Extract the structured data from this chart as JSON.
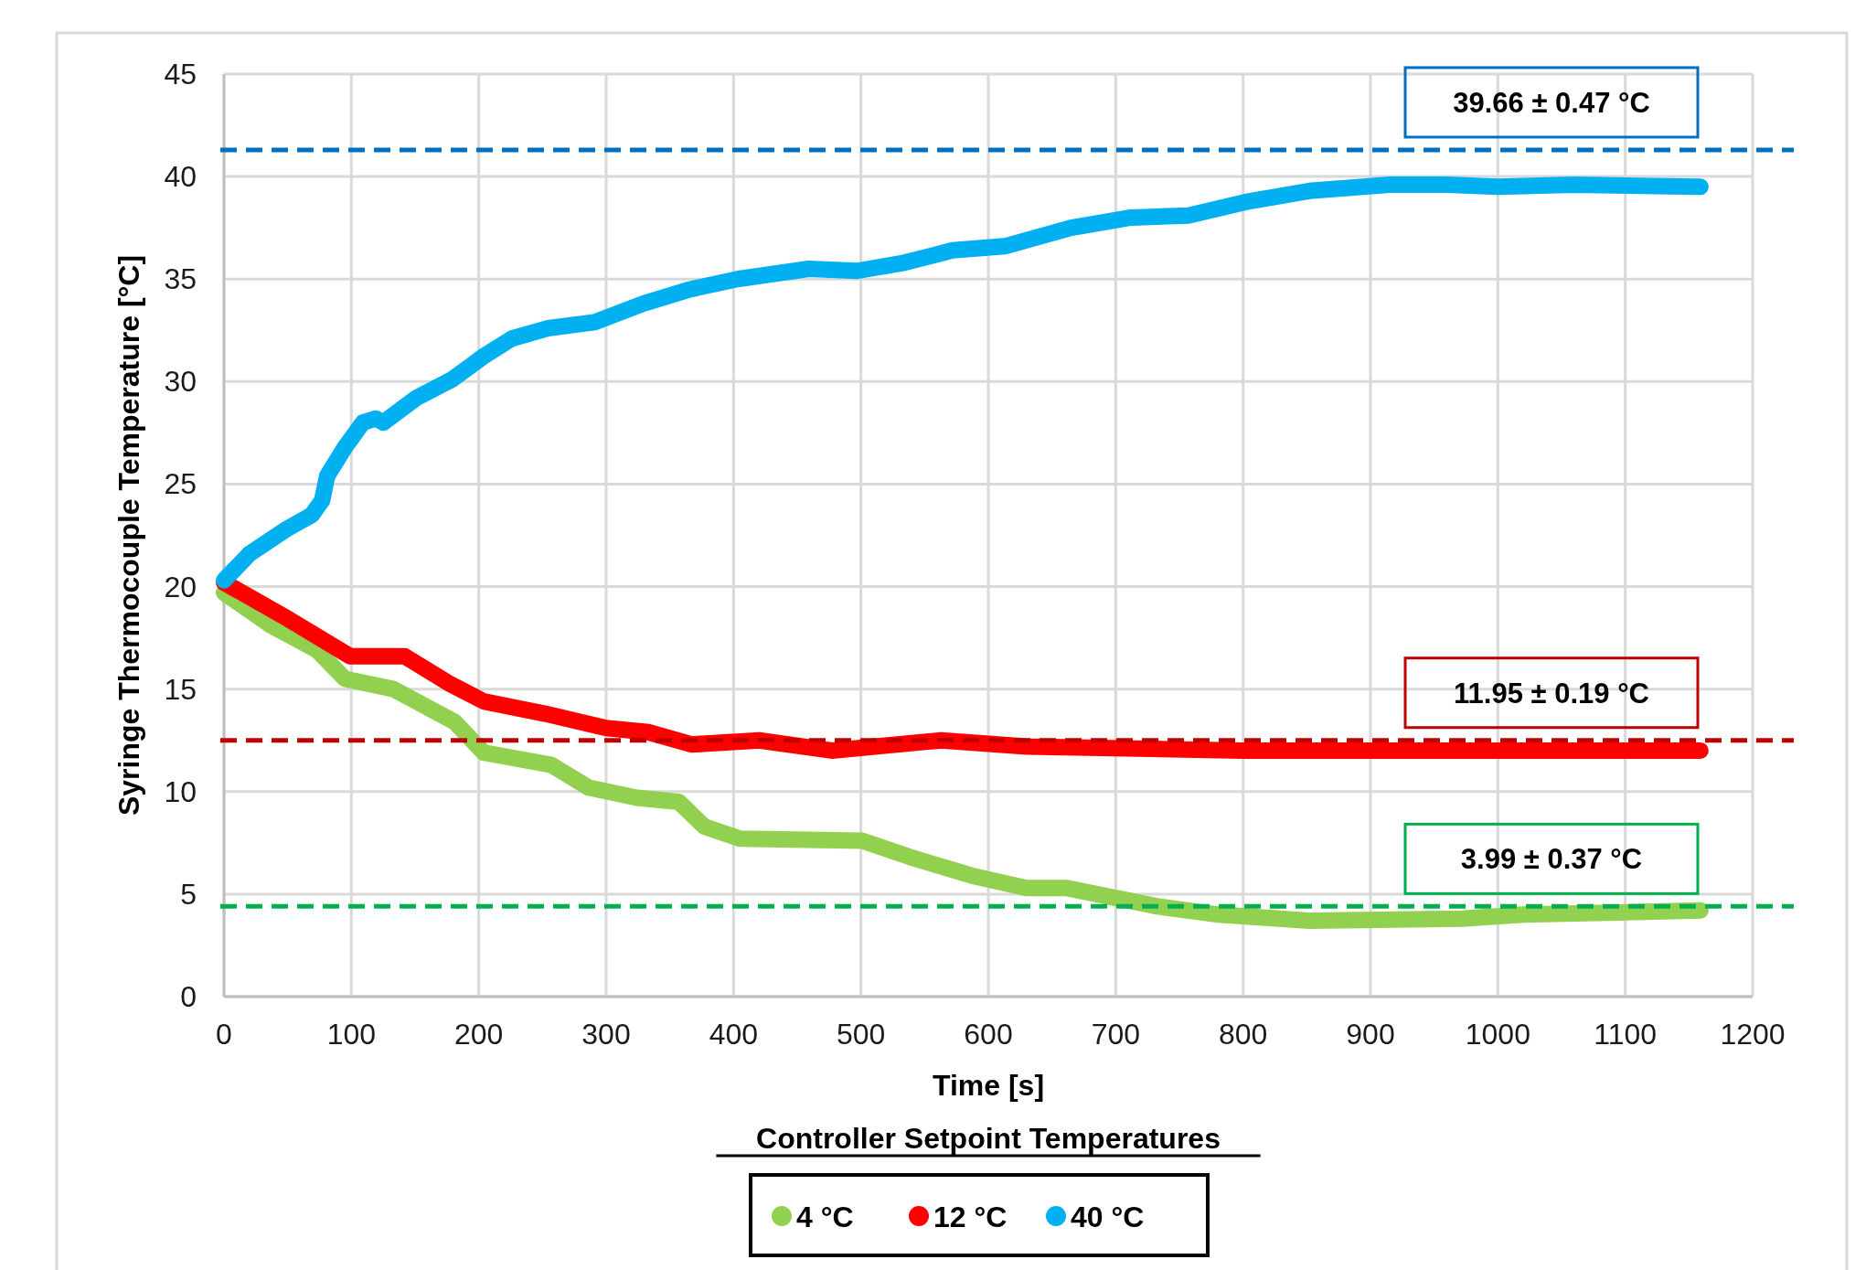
{
  "chart_data": {
    "type": "line",
    "xlabel": "Time  [s]",
    "ylabel": "Syringe  Thermocouple  Temperature [°C]",
    "legend_title": "Controller Setpoint Temperatures",
    "legend": "bottom",
    "grid": true,
    "line_style": "solid",
    "xlim": [
      0,
      1200
    ],
    "xticks": [
      0,
      100,
      200,
      300,
      400,
      500,
      600,
      700,
      800,
      900,
      1000,
      1100,
      1200
    ],
    "ylim": [
      0,
      45
    ],
    "yticks": [
      0,
      5,
      10,
      15,
      20,
      25,
      30,
      35,
      40,
      45
    ],
    "series": [
      {
        "name": "4 °C",
        "color": "#92d050",
        "x": [
          0,
          37,
          73,
          95,
          133,
          181,
          204,
          257,
          286,
          324,
          357,
          377,
          405,
          501,
          539,
          587,
          630,
          661,
          733,
          781,
          852,
          972,
          1020,
          1159
        ],
        "values": [
          19.7,
          18.1,
          16.9,
          15.5,
          15.0,
          13.4,
          11.9,
          11.3,
          10.2,
          9.7,
          9.5,
          8.3,
          7.7,
          7.6,
          6.8,
          5.9,
          5.3,
          5.3,
          4.4,
          4.0,
          3.7,
          3.8,
          4.0,
          4.2
        ]
      },
      {
        "name": "12 °C",
        "color": "#ff0000",
        "x": [
          0,
          51,
          99,
          142,
          176,
          204,
          252,
          300,
          333,
          367,
          420,
          477,
          563,
          630,
          800,
          1000,
          1159
        ],
        "values": [
          20.2,
          18.4,
          16.6,
          16.6,
          15.3,
          14.4,
          13.8,
          13.1,
          12.9,
          12.3,
          12.5,
          12.0,
          12.5,
          12.2,
          12.0,
          12.0,
          12.0
        ]
      },
      {
        "name": "40 °C",
        "color": "#00b0f0",
        "x": [
          0,
          20,
          49,
          69,
          77,
          81,
          95,
          109,
          119,
          125,
          151,
          179,
          203,
          226,
          254,
          291,
          329,
          366,
          403,
          459,
          497,
          534,
          572,
          613,
          665,
          712,
          757,
          805,
          852,
          915,
          960,
          1000,
          1060,
          1159
        ],
        "values": [
          20.3,
          21.6,
          22.8,
          23.5,
          24.2,
          25.4,
          26.8,
          28.0,
          28.2,
          28.0,
          29.2,
          30.1,
          31.2,
          32.1,
          32.6,
          32.9,
          33.8,
          34.5,
          35.0,
          35.5,
          35.4,
          35.8,
          36.4,
          36.6,
          37.5,
          38.0,
          38.1,
          38.8,
          39.3,
          39.6,
          39.6,
          39.5,
          39.6,
          39.5
        ]
      }
    ],
    "ref_lines": [
      {
        "axis": "y",
        "value": 41.3,
        "label": "39.66 ± 0.47 °C",
        "color": "#0070c0",
        "line_style": "dashed"
      },
      {
        "axis": "y",
        "value": 12.5,
        "label": "11.95 ± 0.19 °C",
        "color": "#c00000",
        "line_style": "dashed"
      },
      {
        "axis": "y",
        "value": 4.4,
        "label": "3.99 ± 0.37 °C",
        "color": "#00b050",
        "line_style": "dashed"
      }
    ]
  }
}
